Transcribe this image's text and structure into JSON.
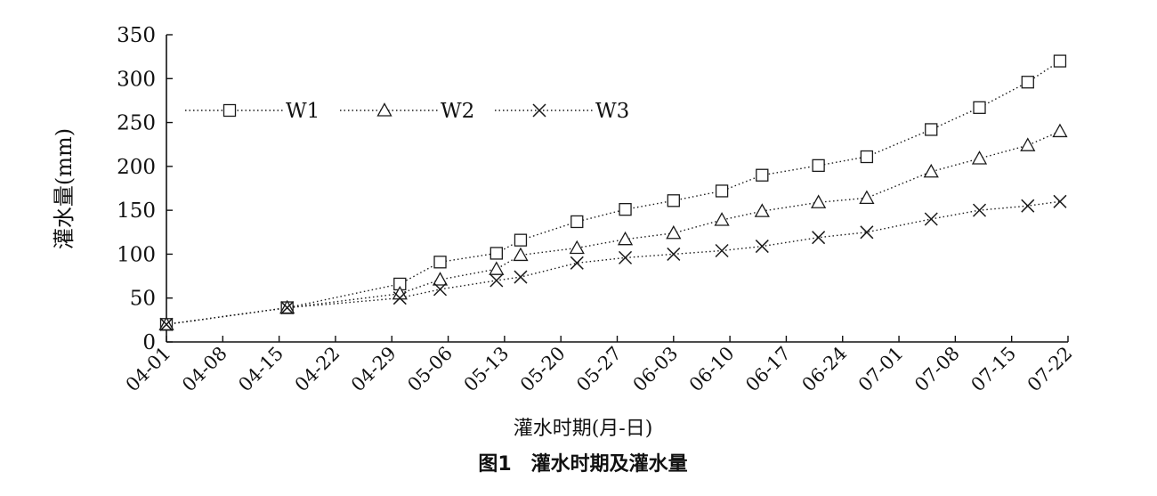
{
  "chart_data": {
    "type": "line",
    "xlabel": "灌水时期(月-日)",
    "ylabel": "灌水量(mm)",
    "caption": "图1　灌水时期及灌水量",
    "x_start": "04-01",
    "x_ticks": [
      "04-01",
      "04-08",
      "04-15",
      "04-22",
      "04-29",
      "05-06",
      "05-13",
      "05-20",
      "05-27",
      "06-03",
      "06-10",
      "06-17",
      "06-24",
      "07-01",
      "07-08",
      "07-15",
      "07-22"
    ],
    "y_ticks": [
      0,
      50,
      100,
      150,
      200,
      250,
      300,
      350
    ],
    "ylim": [
      0,
      350
    ],
    "grid": false,
    "legend_position": "top-left",
    "series": [
      {
        "name": "W1",
        "marker": "square",
        "points": [
          {
            "x": "04-01",
            "y": 20
          },
          {
            "x": "04-16",
            "y": 39
          },
          {
            "x": "04-30",
            "y": 66
          },
          {
            "x": "05-05",
            "y": 91
          },
          {
            "x": "05-12",
            "y": 101
          },
          {
            "x": "05-15",
            "y": 116
          },
          {
            "x": "05-22",
            "y": 137
          },
          {
            "x": "05-28",
            "y": 151
          },
          {
            "x": "06-03",
            "y": 161
          },
          {
            "x": "06-09",
            "y": 172
          },
          {
            "x": "06-14",
            "y": 190
          },
          {
            "x": "06-21",
            "y": 201
          },
          {
            "x": "06-27",
            "y": 211
          },
          {
            "x": "07-05",
            "y": 242
          },
          {
            "x": "07-11",
            "y": 267
          },
          {
            "x": "07-17",
            "y": 296
          },
          {
            "x": "07-21",
            "y": 320
          }
        ]
      },
      {
        "name": "W2",
        "marker": "triangle",
        "points": [
          {
            "x": "04-01",
            "y": 20
          },
          {
            "x": "04-16",
            "y": 39
          },
          {
            "x": "04-30",
            "y": 55
          },
          {
            "x": "05-05",
            "y": 71
          },
          {
            "x": "05-12",
            "y": 83
          },
          {
            "x": "05-15",
            "y": 99
          },
          {
            "x": "05-22",
            "y": 107
          },
          {
            "x": "05-28",
            "y": 117
          },
          {
            "x": "06-03",
            "y": 124
          },
          {
            "x": "06-09",
            "y": 139
          },
          {
            "x": "06-14",
            "y": 149
          },
          {
            "x": "06-21",
            "y": 159
          },
          {
            "x": "06-27",
            "y": 164
          },
          {
            "x": "07-05",
            "y": 194
          },
          {
            "x": "07-11",
            "y": 209
          },
          {
            "x": "07-17",
            "y": 224
          },
          {
            "x": "07-21",
            "y": 240
          }
        ]
      },
      {
        "name": "W3",
        "marker": "x",
        "points": [
          {
            "x": "04-01",
            "y": 20
          },
          {
            "x": "04-16",
            "y": 39
          },
          {
            "x": "04-30",
            "y": 50
          },
          {
            "x": "05-05",
            "y": 60
          },
          {
            "x": "05-12",
            "y": 70
          },
          {
            "x": "05-15",
            "y": 74
          },
          {
            "x": "05-22",
            "y": 90
          },
          {
            "x": "05-28",
            "y": 96
          },
          {
            "x": "06-03",
            "y": 100
          },
          {
            "x": "06-09",
            "y": 104
          },
          {
            "x": "06-14",
            "y": 109
          },
          {
            "x": "06-21",
            "y": 119
          },
          {
            "x": "06-27",
            "y": 125
          },
          {
            "x": "07-05",
            "y": 140
          },
          {
            "x": "07-11",
            "y": 150
          },
          {
            "x": "07-17",
            "y": 155
          },
          {
            "x": "07-21",
            "y": 160
          }
        ]
      }
    ]
  }
}
